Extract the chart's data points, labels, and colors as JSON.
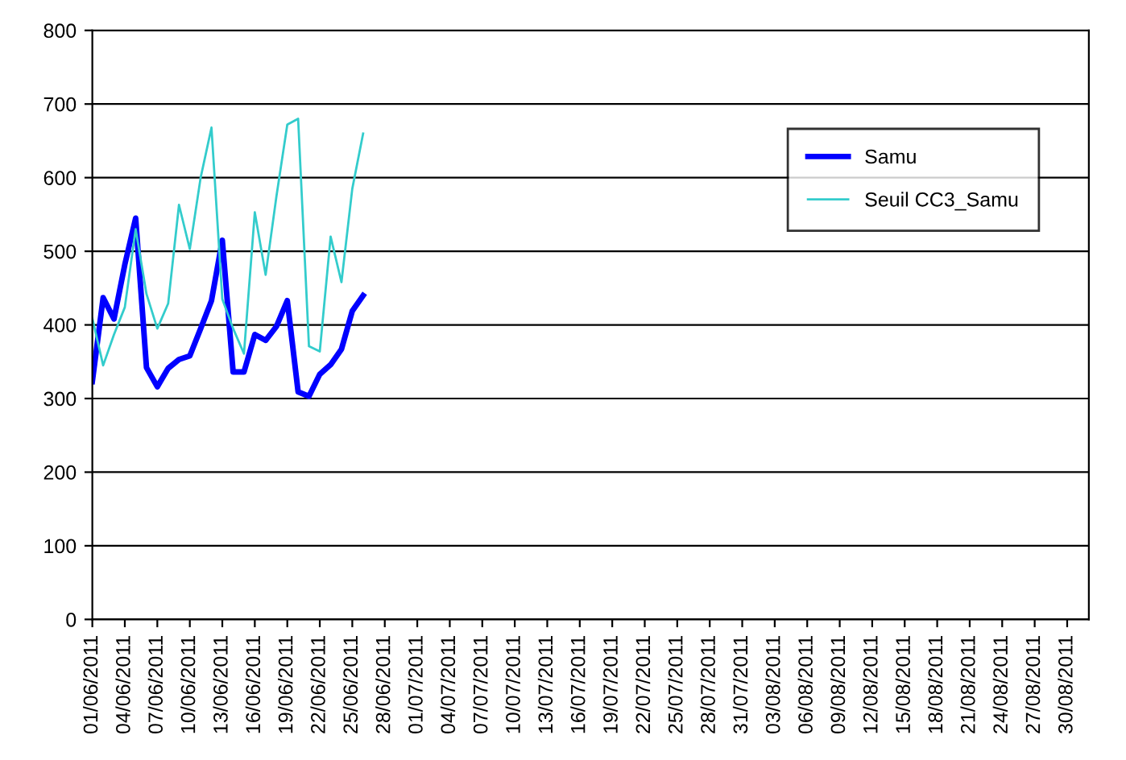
{
  "chart_data": {
    "type": "line",
    "x": [
      "2011-06-01",
      "2011-06-02",
      "2011-06-03",
      "2011-06-04",
      "2011-06-05",
      "2011-06-06",
      "2011-06-07",
      "2011-06-08",
      "2011-06-09",
      "2011-06-10",
      "2011-06-11",
      "2011-06-12",
      "2011-06-13",
      "2011-06-14",
      "2011-06-15",
      "2011-06-16",
      "2011-06-17",
      "2011-06-18",
      "2011-06-19",
      "2011-06-20",
      "2011-06-21",
      "2011-06-22",
      "2011-06-23",
      "2011-06-24",
      "2011-06-25",
      "2011-06-26"
    ],
    "series": [
      {
        "name": "Samu",
        "color": "#0000ff",
        "values": [
          323,
          437,
          408,
          482,
          545,
          342,
          316,
          341,
          353,
          358,
          395,
          433,
          515,
          336,
          336,
          387,
          379,
          398,
          433,
          309,
          303,
          333,
          346,
          367,
          419,
          440
        ]
      },
      {
        "name": "Seuil CC3_Samu",
        "color": "#33cccc",
        "values": [
          409,
          345,
          387,
          424,
          530,
          442,
          395,
          429,
          563,
          503,
          600,
          668,
          435,
          395,
          361,
          553,
          468,
          575,
          672,
          680,
          371,
          364,
          520,
          458,
          585,
          660
        ]
      }
    ],
    "xlim": [
      "2011-06-01",
      "2011-09-01"
    ],
    "xticks": [
      {
        "value": "2011-06-01",
        "label": "01/06/2011"
      },
      {
        "value": "2011-06-04",
        "label": "04/06/2011"
      },
      {
        "value": "2011-06-07",
        "label": "07/06/2011"
      },
      {
        "value": "2011-06-10",
        "label": "10/06/2011"
      },
      {
        "value": "2011-06-13",
        "label": "13/06/2011"
      },
      {
        "value": "2011-06-16",
        "label": "16/06/2011"
      },
      {
        "value": "2011-06-19",
        "label": "19/06/2011"
      },
      {
        "value": "2011-06-22",
        "label": "22/06/2011"
      },
      {
        "value": "2011-06-25",
        "label": "25/06/2011"
      },
      {
        "value": "2011-06-28",
        "label": "28/06/2011"
      },
      {
        "value": "2011-07-01",
        "label": "01/07/2011"
      },
      {
        "value": "2011-07-04",
        "label": "04/07/2011"
      },
      {
        "value": "2011-07-07",
        "label": "07/07/2011"
      },
      {
        "value": "2011-07-10",
        "label": "10/07/2011"
      },
      {
        "value": "2011-07-13",
        "label": "13/07/2011"
      },
      {
        "value": "2011-07-16",
        "label": "16/07/2011"
      },
      {
        "value": "2011-07-19",
        "label": "19/07/2011"
      },
      {
        "value": "2011-07-22",
        "label": "22/07/2011"
      },
      {
        "value": "2011-07-25",
        "label": "25/07/2011"
      },
      {
        "value": "2011-07-28",
        "label": "28/07/2011"
      },
      {
        "value": "2011-07-31",
        "label": "31/07/2011"
      },
      {
        "value": "2011-08-03",
        "label": "03/08/2011"
      },
      {
        "value": "2011-08-06",
        "label": "06/08/2011"
      },
      {
        "value": "2011-08-09",
        "label": "09/08/2011"
      },
      {
        "value": "2011-08-12",
        "label": "12/08/2011"
      },
      {
        "value": "2011-08-15",
        "label": "15/08/2011"
      },
      {
        "value": "2011-08-18",
        "label": "18/08/2011"
      },
      {
        "value": "2011-08-21",
        "label": "21/08/2011"
      },
      {
        "value": "2011-08-24",
        "label": "24/08/2011"
      },
      {
        "value": "2011-08-27",
        "label": "27/08/2011"
      },
      {
        "value": "2011-08-30",
        "label": "30/08/2011"
      }
    ],
    "ylim": [
      0,
      800
    ],
    "yticks": [
      0,
      100,
      200,
      300,
      400,
      500,
      600,
      700,
      800
    ],
    "grid": "y",
    "legend": "top right",
    "marker": "none",
    "line_style": "solid"
  }
}
